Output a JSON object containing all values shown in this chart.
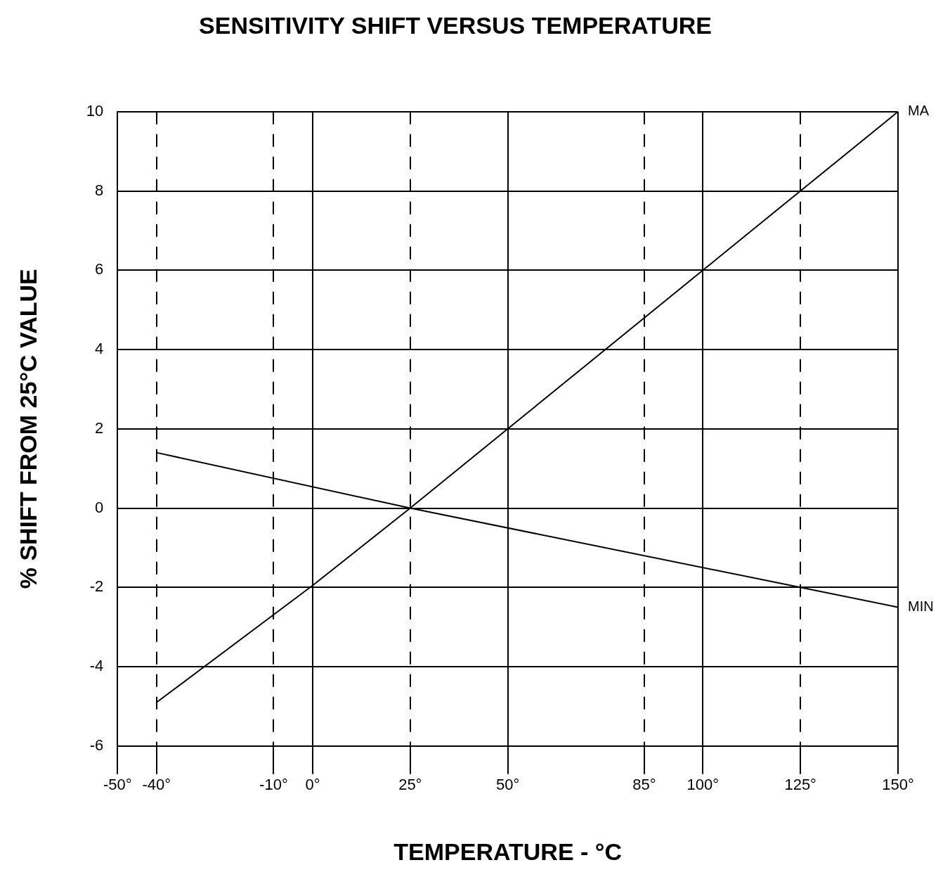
{
  "chart_data": {
    "type": "line",
    "title": "SENSITIVITY SHIFT VERSUS TEMPERATURE",
    "xlabel": "TEMPERATURE - °C",
    "ylabel": "% SHIFT FROM 25°C VALUE",
    "xlim": [
      -50,
      150
    ],
    "xticks": [
      {
        "value": -50,
        "label": "-50°"
      },
      {
        "value": -40,
        "label": "-40°"
      },
      {
        "value": -10,
        "label": "-10°"
      },
      {
        "value": 0,
        "label": "0°"
      },
      {
        "value": 25,
        "label": "25°"
      },
      {
        "value": 50,
        "label": "50°"
      },
      {
        "value": 85,
        "label": "85°"
      },
      {
        "value": 100,
        "label": "100°"
      },
      {
        "value": 125,
        "label": "125°"
      },
      {
        "value": 150,
        "label": "150°"
      }
    ],
    "ylim": [
      -6,
      10
    ],
    "yticks": [
      -6,
      -4,
      -2,
      0,
      2,
      4,
      6,
      8,
      10
    ],
    "grid": true,
    "legend": false,
    "marker": "none",
    "line_style": "solid",
    "series": [
      {
        "name": "MA",
        "color": "#000000",
        "x": [
          -40,
          0,
          25,
          50,
          100,
          125,
          150
        ],
        "values": [
          -4.9,
          -1.95,
          0,
          2,
          6,
          8,
          10
        ]
      },
      {
        "name": "MIN",
        "color": "#000000",
        "x": [
          -40,
          25,
          125,
          150
        ],
        "values": [
          1.4,
          0,
          -2,
          -2.5
        ]
      }
    ]
  }
}
